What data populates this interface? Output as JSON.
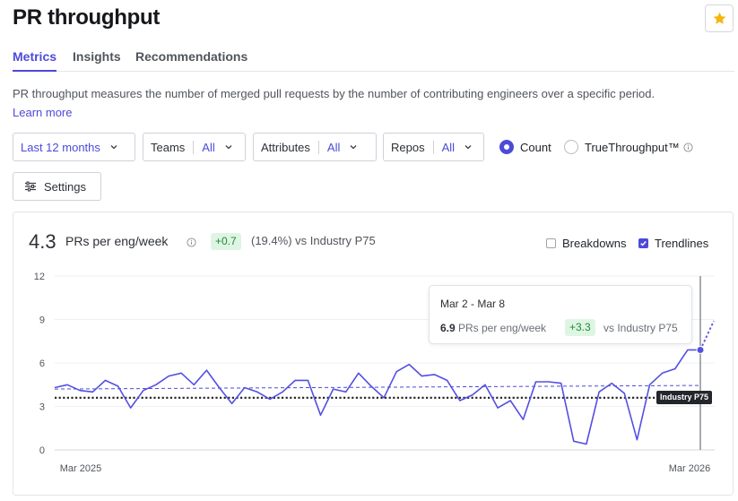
{
  "header": {
    "title": "PR throughput"
  },
  "tabs": [
    {
      "label": "Metrics",
      "active": true
    },
    {
      "label": "Insights",
      "active": false
    },
    {
      "label": "Recommendations",
      "active": false
    }
  ],
  "description": "PR throughput measures the number of merged pull requests by the number of contributing engineers over a specific period.",
  "learn_more": "Learn more",
  "filters": {
    "period": "Last 12 months",
    "teams": {
      "label": "Teams",
      "value": "All"
    },
    "attributes": {
      "label": "Attributes",
      "value": "All"
    },
    "repos": {
      "label": "Repos",
      "value": "All"
    }
  },
  "mode": {
    "count_label": "Count",
    "true_label": "TrueThroughput™",
    "selected": "Count"
  },
  "settings_label": "Settings",
  "summary": {
    "value": "4.3",
    "unit": "PRs per eng/week",
    "delta": "+0.7",
    "delta_text": "(19.4%) vs Industry P75"
  },
  "toggles": {
    "breakdowns": {
      "label": "Breakdowns",
      "checked": false
    },
    "trendlines": {
      "label": "Trendlines",
      "checked": true
    }
  },
  "tooltip": {
    "date": "Mar 2 - Mar 8",
    "value": "6.9",
    "unit": "PRs per eng/week",
    "delta": "+3.3",
    "vs": "vs Industry P75"
  },
  "industry_label": "Industry P75",
  "colors": {
    "accent": "#4d4ad9",
    "success_bg": "#dff5e3",
    "success_fg": "#1e8a3a",
    "star": "#f5b50a"
  },
  "chart_data": {
    "type": "line",
    "ylim": [
      0,
      12
    ],
    "yticks": [
      "0",
      "3",
      "6",
      "9",
      "12"
    ],
    "xtick_labels": [
      "Mar 2025",
      "Mar 2026"
    ],
    "series": [
      {
        "values": [
          4.3,
          4.5,
          4.1,
          4.0,
          4.8,
          4.4,
          2.9,
          4.1,
          4.5,
          5.1,
          5.3,
          4.5,
          5.5,
          4.3,
          3.2,
          4.3,
          4.0,
          3.5,
          4.0,
          4.8,
          4.8,
          2.4,
          4.2,
          4.0,
          5.3,
          4.4,
          3.6,
          5.4,
          5.9,
          5.1,
          5.2,
          4.8,
          3.4,
          3.8,
          4.5,
          2.9,
          3.4,
          2.1,
          4.7,
          4.7,
          4.6,
          0.6,
          0.4,
          4.0,
          4.6,
          3.9,
          0.7,
          4.5,
          5.3,
          5.6,
          6.9,
          6.9
        ],
        "projection_end": 8.9
      }
    ],
    "trendline": [
      4.2,
      4.45
    ],
    "industry_p75": 3.6,
    "highlight_index": 51
  }
}
